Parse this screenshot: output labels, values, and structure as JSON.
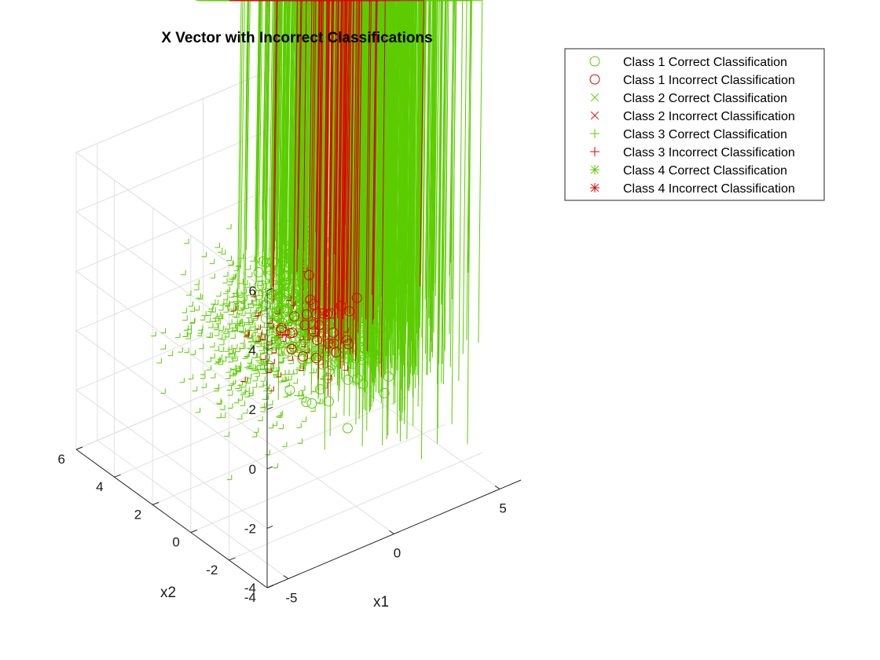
{
  "chart_data": {
    "type": "scatter",
    "title": "X Vector with Incorrect Classifications",
    "xlabel": "x1",
    "ylabel": "x2",
    "zlabel": "",
    "x_ticks": [
      "-5",
      "0",
      "5"
    ],
    "y_ticks": [
      "-4",
      "-2",
      "0",
      "2",
      "4",
      "6"
    ],
    "z_ticks": [
      "-4",
      "-2",
      "0",
      "2",
      "4",
      "6"
    ],
    "xlim": [
      -6,
      6
    ],
    "ylim": [
      -4,
      6
    ],
    "zlim": [
      -4,
      6
    ],
    "grid": true,
    "legend_position": "outside-top-right",
    "series": [
      {
        "name": "Class 1 Correct Classification",
        "marker": "circle",
        "color": "#5CCC00",
        "center": [
          1,
          1,
          1
        ],
        "spread": 1.0,
        "count": 450
      },
      {
        "name": "Class 1 Incorrect Classification",
        "marker": "circle",
        "color": "#E00000",
        "center": [
          0.5,
          0.5,
          0.5
        ],
        "spread": 0.7,
        "count": 30
      },
      {
        "name": "Class 2 Correct Classification",
        "marker": "x",
        "color": "#5CCC00",
        "center": [
          3,
          0,
          -0.5
        ],
        "spread": 1.2,
        "count": 550
      },
      {
        "name": "Class 2 Incorrect Classification",
        "marker": "x",
        "color": "#E00000",
        "center": [
          1.5,
          0.3,
          0
        ],
        "spread": 0.8,
        "count": 45
      },
      {
        "name": "Class 3 Correct Classification",
        "marker": "plus",
        "color": "#5CCC00",
        "center": [
          -1,
          2,
          0
        ],
        "spread": 1.2,
        "count": 550
      },
      {
        "name": "Class 3 Incorrect Classification",
        "marker": "plus",
        "color": "#E00000",
        "center": [
          0,
          1.3,
          0.2
        ],
        "spread": 0.9,
        "count": 45
      },
      {
        "name": "Class 4 Correct Classification",
        "marker": "asterisk",
        "color": "#5CCC00",
        "center": [
          0.5,
          0.5,
          2.2
        ],
        "spread": 1.0,
        "count": 350
      },
      {
        "name": "Class 4 Incorrect Classification",
        "marker": "asterisk",
        "color": "#E00000",
        "center": [
          1.2,
          0.5,
          1.2
        ],
        "spread": 0.9,
        "count": 25
      }
    ]
  }
}
